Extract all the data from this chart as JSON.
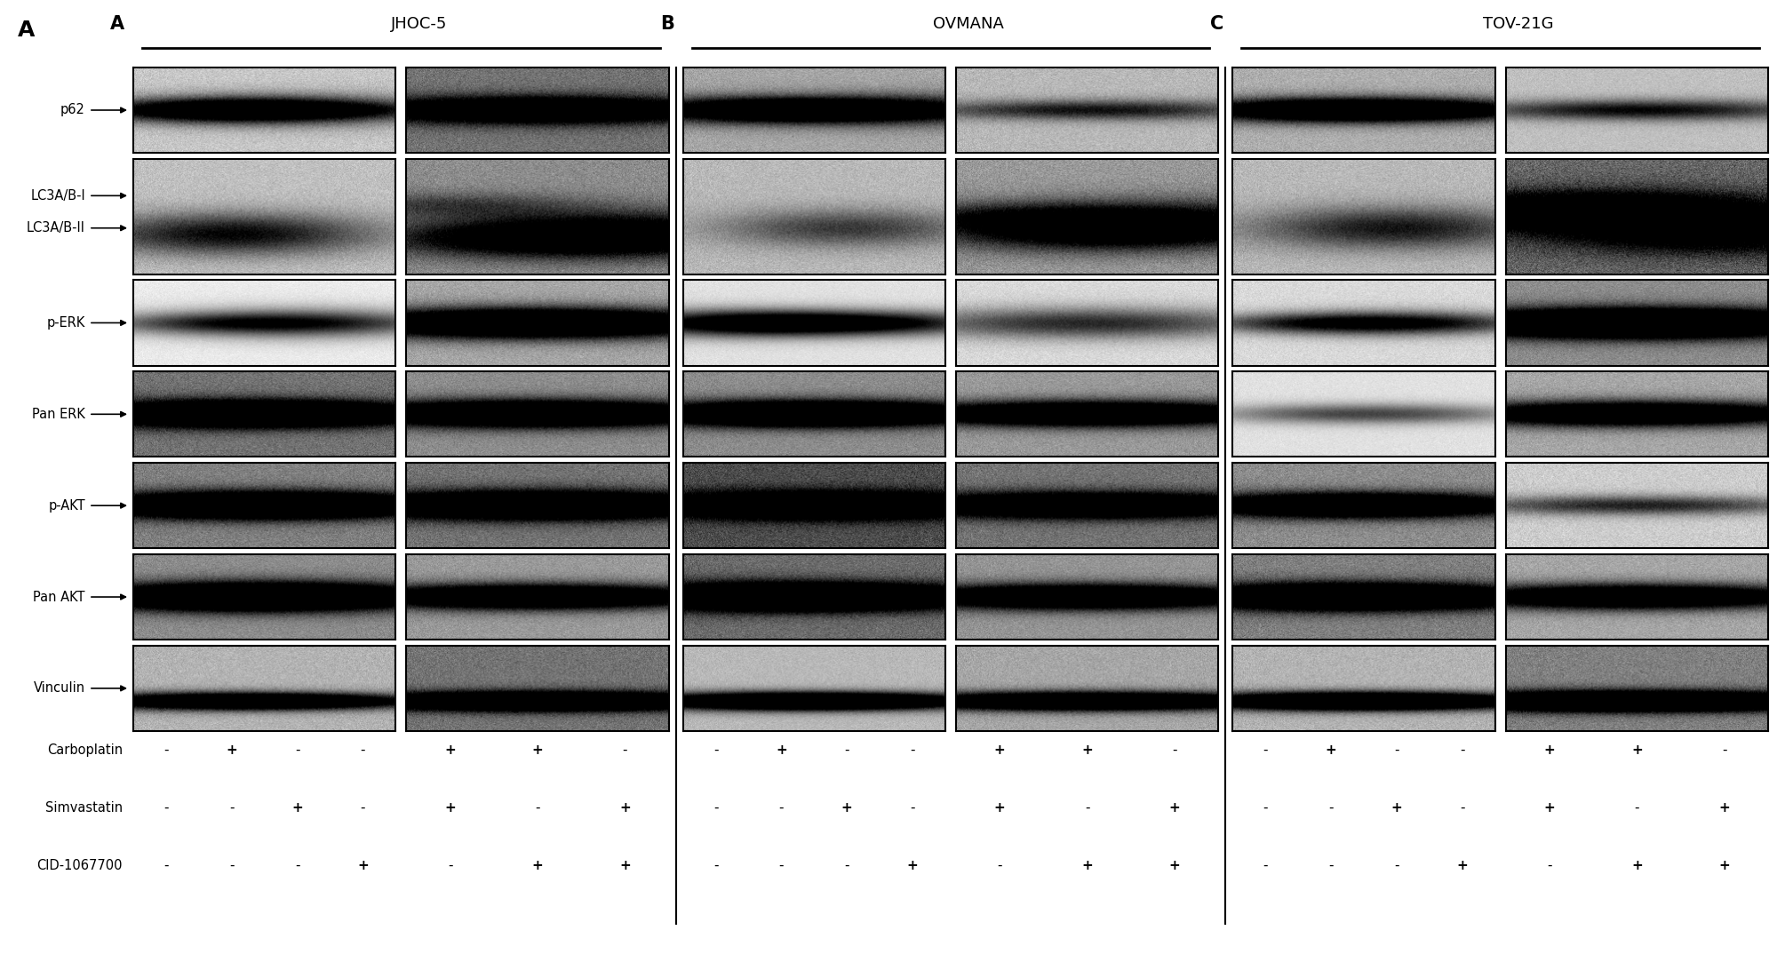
{
  "cell_lines": [
    "JHOC-5",
    "OVMANA",
    "TOV-21G"
  ],
  "letters": [
    "A",
    "B",
    "C"
  ],
  "row_labels": [
    "p62",
    "LC3A/B",
    "p-ERK",
    "Pan ERK",
    "p-AKT",
    "Pan AKT",
    "Vinculin"
  ],
  "lc3_labels": [
    "LC3A/B-I",
    "LC3A/B-II"
  ],
  "treatment_labels": [
    "Carboplatin",
    "Simvastatin",
    "CID-1067700"
  ],
  "treatments": [
    [
      "-",
      "+",
      "-",
      "-",
      "+",
      "+",
      "-"
    ],
    [
      "-",
      "-",
      "+",
      "-",
      "+",
      "-",
      "+"
    ],
    [
      "-",
      "-",
      "-",
      "+",
      "-",
      "+",
      "+"
    ]
  ],
  "bg_color": "#ffffff"
}
